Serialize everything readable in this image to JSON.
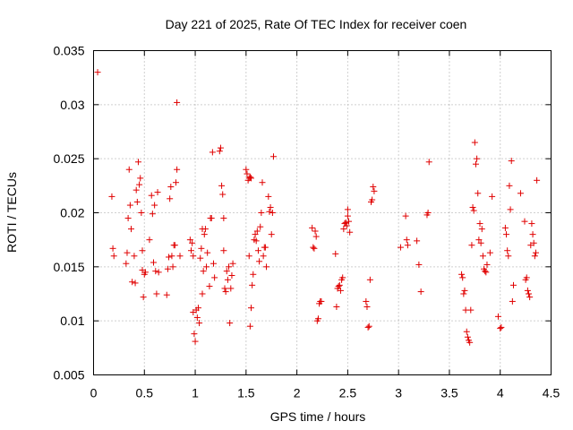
{
  "chart_data": {
    "type": "scatter",
    "title": "Day 221 of 2025, Rate Of TEC Index for receiver coen",
    "xlabel": "GPS time / hours",
    "ylabel": "ROTI / TECUs",
    "xlim": [
      0,
      4.5
    ],
    "ylim": [
      0.005,
      0.035
    ],
    "xticks": [
      0,
      0.5,
      1,
      1.5,
      2,
      2.5,
      3,
      3.5,
      4,
      4.5
    ],
    "xtick_labels": [
      "0",
      "0.5",
      "1",
      "1.5",
      "2",
      "2.5",
      "3",
      "3.5",
      "4",
      "4.5"
    ],
    "yticks": [
      0.005,
      0.01,
      0.015,
      0.02,
      0.025,
      0.03,
      0.035
    ],
    "ytick_labels": [
      "0.005",
      "0.01",
      "0.015",
      "0.02",
      "0.025",
      "0.03",
      "0.035"
    ],
    "grid": true,
    "marker": "+",
    "color": "#e00000",
    "series": [
      {
        "name": "ROTI",
        "points": [
          [
            0.04,
            0.033
          ],
          [
            0.18,
            0.0215
          ],
          [
            0.19,
            0.0167
          ],
          [
            0.2,
            0.016
          ],
          [
            0.32,
            0.0153
          ],
          [
            0.33,
            0.0163
          ],
          [
            0.34,
            0.0195
          ],
          [
            0.35,
            0.024
          ],
          [
            0.36,
            0.0207
          ],
          [
            0.37,
            0.0185
          ],
          [
            0.38,
            0.0136
          ],
          [
            0.4,
            0.016
          ],
          [
            0.41,
            0.0135
          ],
          [
            0.42,
            0.0221
          ],
          [
            0.43,
            0.021
          ],
          [
            0.44,
            0.0247
          ],
          [
            0.45,
            0.0226
          ],
          [
            0.46,
            0.0232
          ],
          [
            0.47,
            0.02
          ],
          [
            0.48,
            0.0165
          ],
          [
            0.48,
            0.0147
          ],
          [
            0.49,
            0.0122
          ],
          [
            0.5,
            0.0143
          ],
          [
            0.51,
            0.0145
          ],
          [
            0.55,
            0.0175
          ],
          [
            0.57,
            0.0216
          ],
          [
            0.58,
            0.0199
          ],
          [
            0.59,
            0.0154
          ],
          [
            0.6,
            0.0207
          ],
          [
            0.61,
            0.0146
          ],
          [
            0.62,
            0.0125
          ],
          [
            0.63,
            0.0219
          ],
          [
            0.64,
            0.0145
          ],
          [
            0.72,
            0.0124
          ],
          [
            0.73,
            0.0148
          ],
          [
            0.74,
            0.0159
          ],
          [
            0.75,
            0.0213
          ],
          [
            0.76,
            0.0224
          ],
          [
            0.77,
            0.016
          ],
          [
            0.78,
            0.015
          ],
          [
            0.79,
            0.017
          ],
          [
            0.8,
            0.017
          ],
          [
            0.81,
            0.0228
          ],
          [
            0.82,
            0.024
          ],
          [
            0.82,
            0.0302
          ],
          [
            0.85,
            0.016
          ],
          [
            0.95,
            0.0175
          ],
          [
            0.96,
            0.0165
          ],
          [
            0.97,
            0.0172
          ],
          [
            0.98,
            0.016
          ],
          [
            0.98,
            0.0108
          ],
          [
            0.99,
            0.0088
          ],
          [
            1.0,
            0.0081
          ],
          [
            1.01,
            0.011
          ],
          [
            1.02,
            0.0103
          ],
          [
            1.03,
            0.0112
          ],
          [
            1.04,
            0.0098
          ],
          [
            1.05,
            0.0158
          ],
          [
            1.06,
            0.0167
          ],
          [
            1.07,
            0.0185
          ],
          [
            1.07,
            0.0125
          ],
          [
            1.08,
            0.0146
          ],
          [
            1.09,
            0.018
          ],
          [
            1.1,
            0.0185
          ],
          [
            1.11,
            0.015
          ],
          [
            1.12,
            0.0163
          ],
          [
            1.14,
            0.0132
          ],
          [
            1.15,
            0.0195
          ],
          [
            1.16,
            0.0195
          ],
          [
            1.17,
            0.0256
          ],
          [
            1.18,
            0.0153
          ],
          [
            1.19,
            0.014
          ],
          [
            1.24,
            0.0257
          ],
          [
            1.25,
            0.026
          ],
          [
            1.26,
            0.0225
          ],
          [
            1.27,
            0.0217
          ],
          [
            1.28,
            0.0195
          ],
          [
            1.28,
            0.0165
          ],
          [
            1.29,
            0.013
          ],
          [
            1.3,
            0.0127
          ],
          [
            1.31,
            0.0146
          ],
          [
            1.32,
            0.0138
          ],
          [
            1.33,
            0.015
          ],
          [
            1.34,
            0.0098
          ],
          [
            1.35,
            0.013
          ],
          [
            1.36,
            0.0142
          ],
          [
            1.37,
            0.0153
          ],
          [
            1.5,
            0.024
          ],
          [
            1.51,
            0.0236
          ],
          [
            1.52,
            0.023
          ],
          [
            1.53,
            0.0232
          ],
          [
            1.54,
            0.0233
          ],
          [
            1.55,
            0.0232
          ],
          [
            1.53,
            0.016
          ],
          [
            1.54,
            0.0095
          ],
          [
            1.55,
            0.0112
          ],
          [
            1.56,
            0.0133
          ],
          [
            1.57,
            0.0143
          ],
          [
            1.58,
            0.0175
          ],
          [
            1.59,
            0.018
          ],
          [
            1.6,
            0.0174
          ],
          [
            1.61,
            0.0183
          ],
          [
            1.62,
            0.0165
          ],
          [
            1.63,
            0.0155
          ],
          [
            1.64,
            0.0187
          ],
          [
            1.65,
            0.02
          ],
          [
            1.66,
            0.0228
          ],
          [
            1.67,
            0.016
          ],
          [
            1.68,
            0.0168
          ],
          [
            1.69,
            0.0168
          ],
          [
            1.7,
            0.015
          ],
          [
            1.72,
            0.0215
          ],
          [
            1.73,
            0.0201
          ],
          [
            1.74,
            0.0205
          ],
          [
            1.75,
            0.018
          ],
          [
            1.76,
            0.02
          ],
          [
            1.77,
            0.0252
          ],
          [
            2.15,
            0.0186
          ],
          [
            2.16,
            0.0168
          ],
          [
            2.17,
            0.0167
          ],
          [
            2.18,
            0.0183
          ],
          [
            2.19,
            0.0178
          ],
          [
            2.2,
            0.01
          ],
          [
            2.21,
            0.0102
          ],
          [
            2.22,
            0.0116
          ],
          [
            2.23,
            0.0118
          ],
          [
            2.24,
            0.0118
          ],
          [
            2.38,
            0.0162
          ],
          [
            2.39,
            0.0113
          ],
          [
            2.4,
            0.013
          ],
          [
            2.41,
            0.0132
          ],
          [
            2.42,
            0.0133
          ],
          [
            2.43,
            0.0128
          ],
          [
            2.44,
            0.0138
          ],
          [
            2.45,
            0.014
          ],
          [
            2.46,
            0.0185
          ],
          [
            2.47,
            0.019
          ],
          [
            2.48,
            0.0191
          ],
          [
            2.49,
            0.0188
          ],
          [
            2.5,
            0.0203
          ],
          [
            2.5,
            0.0197
          ],
          [
            2.51,
            0.0192
          ],
          [
            2.52,
            0.0182
          ],
          [
            2.68,
            0.0118
          ],
          [
            2.69,
            0.0113
          ],
          [
            2.7,
            0.0094
          ],
          [
            2.71,
            0.0095
          ],
          [
            2.72,
            0.0138
          ],
          [
            2.73,
            0.021
          ],
          [
            2.74,
            0.0212
          ],
          [
            2.75,
            0.0224
          ],
          [
            2.76,
            0.022
          ],
          [
            3.02,
            0.0168
          ],
          [
            3.07,
            0.0197
          ],
          [
            3.08,
            0.0175
          ],
          [
            3.09,
            0.017
          ],
          [
            3.18,
            0.0174
          ],
          [
            3.2,
            0.0152
          ],
          [
            3.22,
            0.0127
          ],
          [
            3.28,
            0.0198
          ],
          [
            3.29,
            0.02
          ],
          [
            3.3,
            0.0247
          ],
          [
            3.62,
            0.0143
          ],
          [
            3.63,
            0.014
          ],
          [
            3.64,
            0.0125
          ],
          [
            3.65,
            0.0128
          ],
          [
            3.66,
            0.011
          ],
          [
            3.67,
            0.009
          ],
          [
            3.68,
            0.0085
          ],
          [
            3.69,
            0.0082
          ],
          [
            3.7,
            0.008
          ],
          [
            3.71,
            0.011
          ],
          [
            3.72,
            0.017
          ],
          [
            3.73,
            0.0205
          ],
          [
            3.74,
            0.0202
          ],
          [
            3.75,
            0.0265
          ],
          [
            3.76,
            0.0245
          ],
          [
            3.77,
            0.025
          ],
          [
            3.78,
            0.0218
          ],
          [
            3.79,
            0.0175
          ],
          [
            3.8,
            0.019
          ],
          [
            3.81,
            0.0172
          ],
          [
            3.82,
            0.0185
          ],
          [
            3.83,
            0.016
          ],
          [
            3.84,
            0.0148
          ],
          [
            3.85,
            0.0146
          ],
          [
            3.86,
            0.0145
          ],
          [
            3.87,
            0.0152
          ],
          [
            3.9,
            0.0163
          ],
          [
            3.92,
            0.0215
          ],
          [
            3.98,
            0.0104
          ],
          [
            4.0,
            0.0093
          ],
          [
            4.01,
            0.0094
          ],
          [
            4.05,
            0.0186
          ],
          [
            4.06,
            0.018
          ],
          [
            4.07,
            0.0165
          ],
          [
            4.08,
            0.016
          ],
          [
            4.09,
            0.0225
          ],
          [
            4.1,
            0.0203
          ],
          [
            4.11,
            0.0248
          ],
          [
            4.12,
            0.0118
          ],
          [
            4.13,
            0.0133
          ],
          [
            4.2,
            0.0218
          ],
          [
            4.24,
            0.0192
          ],
          [
            4.25,
            0.0138
          ],
          [
            4.26,
            0.014
          ],
          [
            4.27,
            0.0128
          ],
          [
            4.28,
            0.0125
          ],
          [
            4.29,
            0.0122
          ],
          [
            4.3,
            0.017
          ],
          [
            4.31,
            0.019
          ],
          [
            4.32,
            0.018
          ],
          [
            4.33,
            0.0172
          ],
          [
            4.34,
            0.016
          ],
          [
            4.35,
            0.0163
          ],
          [
            4.36,
            0.023
          ]
        ]
      }
    ]
  }
}
